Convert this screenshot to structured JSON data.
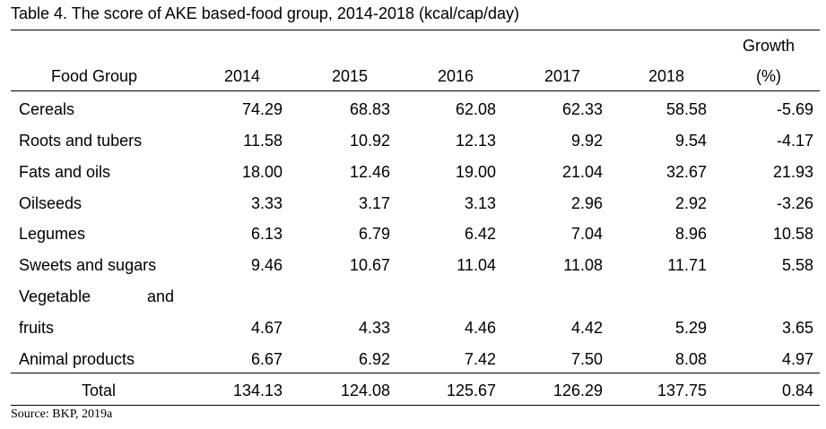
{
  "table": {
    "caption": "Table 4. The score of AKE based-food group, 2014-2018 (kcal/cap/day)",
    "headers": {
      "food_group": "Food Group",
      "years": [
        "2014",
        "2015",
        "2016",
        "2017",
        "2018"
      ],
      "growth_top": "Growth",
      "growth_bottom": "(%)"
    },
    "rows": [
      {
        "label": "Cereals",
        "values": [
          "74.29",
          "68.83",
          "62.08",
          "62.33",
          "58.58"
        ],
        "growth": "-5.69"
      },
      {
        "label": "Roots and tubers",
        "values": [
          "11.58",
          "10.92",
          "12.13",
          "9.92",
          "9.54"
        ],
        "growth": "-4.17"
      },
      {
        "label": "Fats and oils",
        "values": [
          "18.00",
          "12.46",
          "19.00",
          "21.04",
          "32.67"
        ],
        "growth": "21.93"
      },
      {
        "label": "Oilseeds",
        "values": [
          "3.33",
          "3.17",
          "3.13",
          "2.96",
          "2.92"
        ],
        "growth": "-3.26"
      },
      {
        "label": "Legumes",
        "values": [
          "6.13",
          "6.79",
          "6.42",
          "7.04",
          "8.96"
        ],
        "growth": "10.58"
      },
      {
        "label": "Sweets and sugars",
        "values": [
          "9.46",
          "10.67",
          "11.04",
          "11.08",
          "11.71"
        ],
        "growth": "5.58"
      },
      {
        "label_line1": "Vegetable",
        "label_line1b": "and",
        "label": "fruits",
        "values": [
          "4.67",
          "4.33",
          "4.46",
          "4.42",
          "5.29"
        ],
        "growth": "3.65"
      },
      {
        "label": "Animal products",
        "values": [
          "6.67",
          "6.92",
          "7.42",
          "7.50",
          "8.08"
        ],
        "growth": "4.97"
      }
    ],
    "total": {
      "label": "Total",
      "values": [
        "134.13",
        "124.08",
        "125.67",
        "126.29",
        "137.75"
      ],
      "growth": "0.84"
    }
  },
  "source": "Source: BKP, 2019a"
}
